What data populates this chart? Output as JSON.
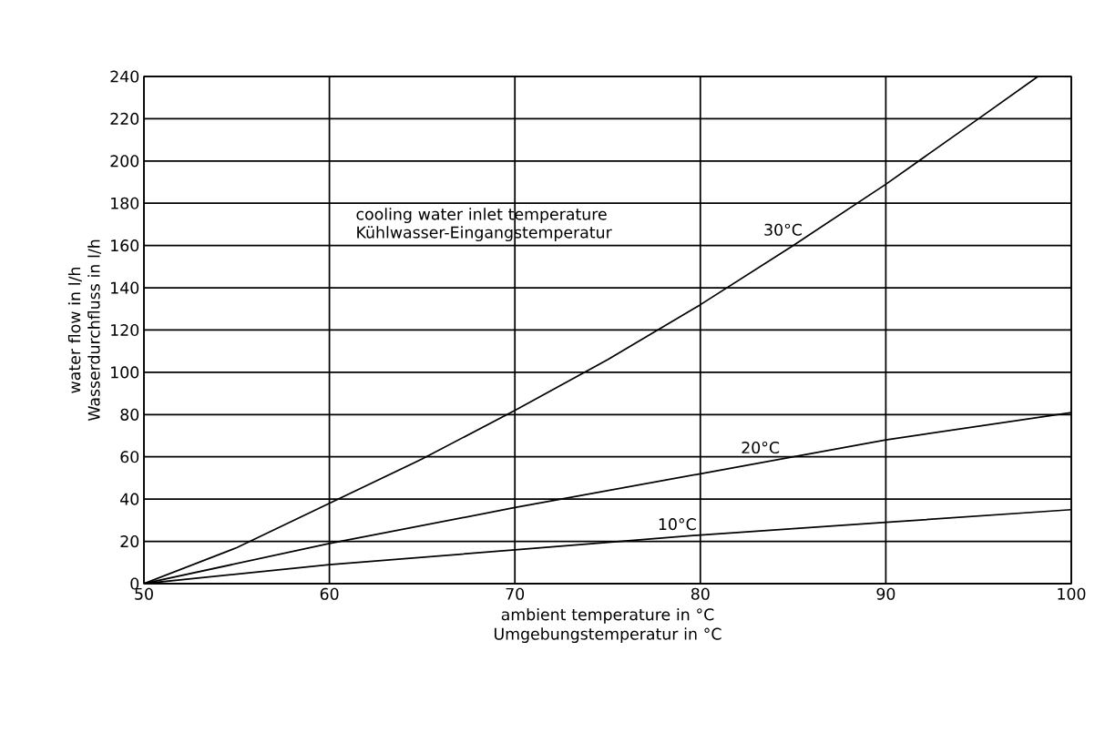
{
  "chart_data": {
    "type": "line",
    "xlabel": "ambient temperature in °C Umgebungstemperatur in °C",
    "ylabel": "water flow in l/h Wasserdurchfluss in l/h",
    "annotations": [
      "cooling water inlet temperature Kühlwasser-Eingangstemperatur"
    ],
    "xlim": [
      50,
      100
    ],
    "ylim": [
      0,
      240
    ],
    "xticks": [
      50,
      60,
      70,
      80,
      90,
      100
    ],
    "yticks": [
      0,
      20,
      40,
      60,
      80,
      100,
      120,
      140,
      160,
      180,
      200,
      220,
      240
    ],
    "grid": true,
    "legend": false,
    "marker": "none",
    "line_style": "solid",
    "series": [
      {
        "name": "30°C",
        "color": "#000000",
        "x": [
          50,
          55,
          60,
          65,
          70,
          75,
          80,
          85,
          90,
          95,
          98.2
        ],
        "values": [
          0,
          17,
          38,
          59,
          82,
          106,
          132,
          160,
          189,
          220,
          240
        ]
      },
      {
        "name": "20°C",
        "color": "#000000",
        "x": [
          50,
          60,
          70,
          80,
          90,
          100
        ],
        "values": [
          0,
          19,
          36,
          52,
          68,
          81
        ]
      },
      {
        "name": "10°C",
        "color": "#000000",
        "x": [
          50,
          60,
          70,
          80,
          90,
          100
        ],
        "values": [
          0,
          9,
          16,
          23,
          29,
          35
        ]
      }
    ]
  }
}
